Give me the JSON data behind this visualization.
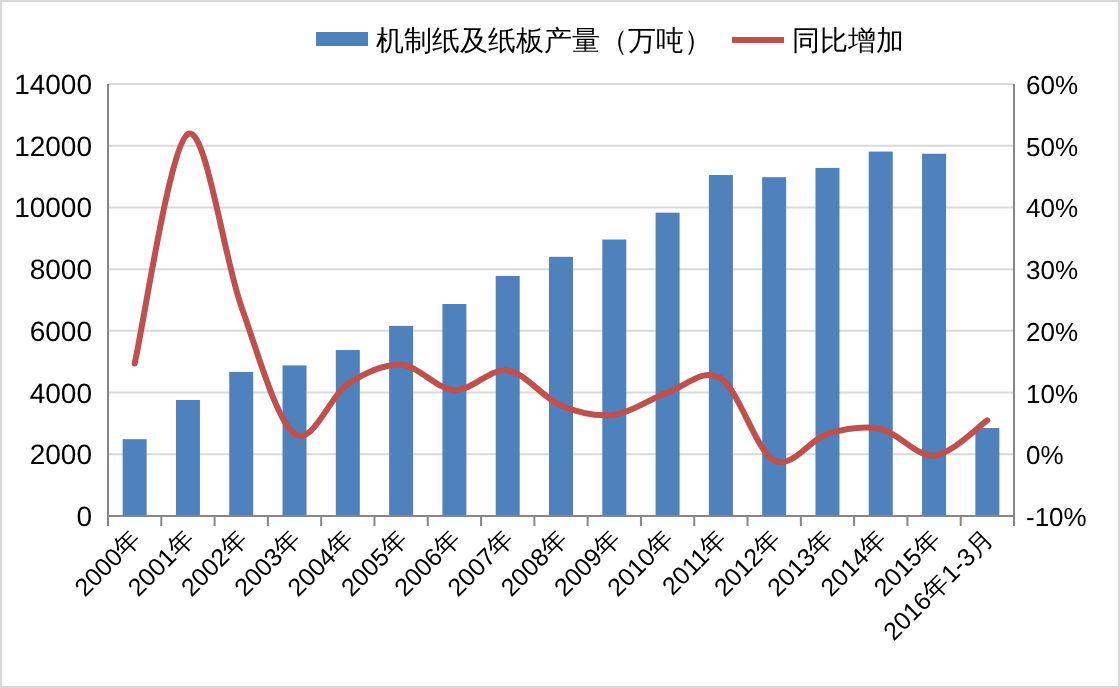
{
  "chart_data": {
    "type": "bar",
    "categories": [
      "2000年",
      "2001年",
      "2002年",
      "2003年",
      "2004年",
      "2005年",
      "2006年",
      "2007年",
      "2008年",
      "2009年",
      "2010年",
      "2011年",
      "2012年",
      "2013年",
      "2014年",
      "2015年",
      "2016年1-3月"
    ],
    "series": [
      {
        "name": "机制纸及纸板产量（万吨）",
        "color": "#4f81bd",
        "values": [
          2490,
          3760,
          4670,
          4880,
          5380,
          6160,
          6870,
          7780,
          8400,
          8960,
          9830,
          11050,
          10980,
          11280,
          11810,
          11740,
          2850
        ]
      },
      {
        "name": "同比增加",
        "type": "line",
        "axis": "y2",
        "color": "#c0504d",
        "values": [
          14.7,
          51.9,
          24,
          3.3,
          11.4,
          14.5,
          10.4,
          13.6,
          7.9,
          6.4,
          10,
          12.3,
          -1,
          3.3,
          4.1,
          -0.2,
          5.5
        ]
      }
    ],
    "ylim": [
      0,
      14000
    ],
    "yticks": [
      0,
      2000,
      4000,
      6000,
      8000,
      10000,
      12000,
      14000
    ],
    "y2lim": [
      -10,
      60
    ],
    "y2ticks": [
      {
        "value": -10,
        "label": "-10%"
      },
      {
        "value": 0,
        "label": "0%"
      },
      {
        "value": 10,
        "label": "10%"
      },
      {
        "value": 20,
        "label": "20%"
      },
      {
        "value": 30,
        "label": "30%"
      },
      {
        "value": 40,
        "label": "40%"
      },
      {
        "value": 50,
        "label": "50%"
      },
      {
        "value": 60,
        "label": "60%"
      }
    ],
    "grid": "y",
    "legend": "top",
    "marker": "none",
    "line_style": "solid"
  }
}
